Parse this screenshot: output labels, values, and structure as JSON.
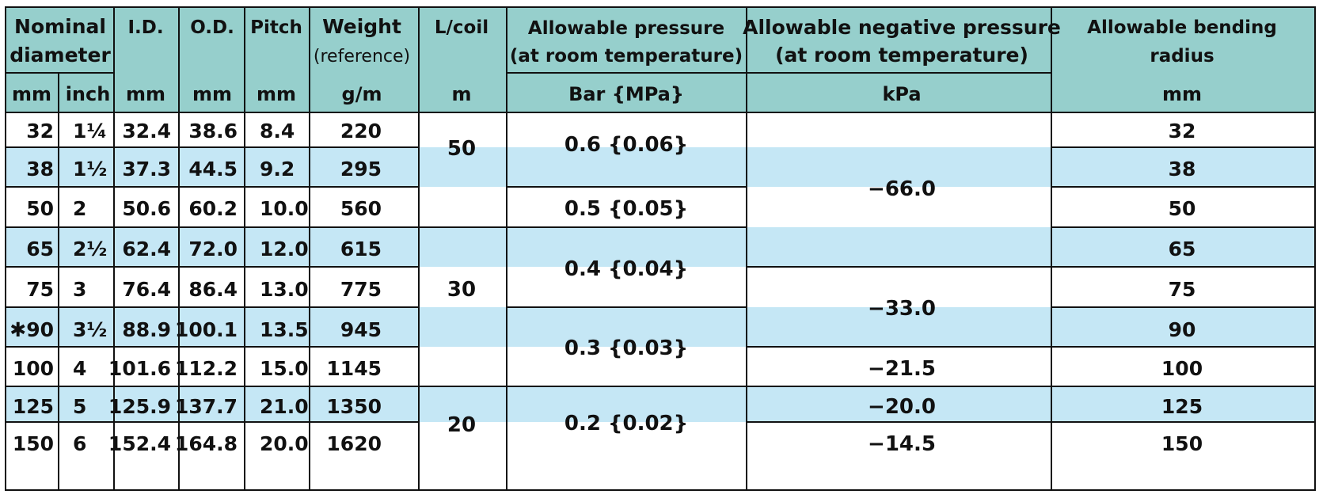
{
  "header": {
    "nominal_diameter": [
      "Nominal",
      "diameter"
    ],
    "id": "I.D.",
    "od": "O.D.",
    "pitch": "Pitch",
    "weight": "Weight",
    "weight_sub": "(reference)",
    "lcoil": "L/coil",
    "allowable_pressure": [
      "Allowable pressure",
      "(at room temperature)"
    ],
    "allowable_negative_pressure": [
      "Allowable negative pressure",
      "(at room temperature)"
    ],
    "allowable_bending_radius": [
      "Allowable bending",
      "radius"
    ]
  },
  "units": {
    "mm": "mm",
    "inch": "inch",
    "id": "mm",
    "od": "mm",
    "pitch": "mm",
    "weight": "g/m",
    "lcoil": "m",
    "pressure": "Bar {MPa}",
    "negative": "kPa",
    "radius": "mm"
  },
  "rows": [
    {
      "mm": "32",
      "inch": "1¼",
      "id": "32.4",
      "od": "38.6",
      "pitch": "8.4",
      "weight": "220",
      "radius": "32"
    },
    {
      "mm": "38",
      "inch": "1½",
      "id": "37.3",
      "od": "44.5",
      "pitch": "9.2",
      "weight": "295",
      "radius": "38"
    },
    {
      "mm": "50",
      "inch": "2",
      "id": "50.6",
      "od": "60.2",
      "pitch": "10.0",
      "weight": "560",
      "radius": "50"
    },
    {
      "mm": "65",
      "inch": "2½",
      "id": "62.4",
      "od": "72.0",
      "pitch": "12.0",
      "weight": "615",
      "radius": "65"
    },
    {
      "mm": "75",
      "inch": "3",
      "id": "76.4",
      "od": "86.4",
      "pitch": "13.0",
      "weight": "775",
      "radius": "75"
    },
    {
      "mm": "✱90",
      "inch": "3½",
      "id": "88.9",
      "od": "100.1",
      "pitch": "13.5",
      "weight": "945",
      "radius": "90"
    },
    {
      "mm": "100",
      "inch": "4",
      "id": "101.6",
      "od": "112.2",
      "pitch": "15.0",
      "weight": "1145",
      "radius": "100"
    },
    {
      "mm": "125",
      "inch": "5",
      "id": "125.9",
      "od": "137.7",
      "pitch": "21.0",
      "weight": "1350",
      "radius": "125"
    },
    {
      "mm": "150",
      "inch": "6",
      "id": "152.4",
      "od": "164.8",
      "pitch": "20.0",
      "weight": "1620",
      "radius": "150"
    }
  ],
  "lcoil_groups": [
    "50",
    "30",
    "20"
  ],
  "pressure_groups": [
    "0.6 {0.06}",
    "0.5 {0.05}",
    "0.4 {0.04}",
    "0.3 {0.03}",
    "0.2 {0.02}"
  ],
  "negative_groups": [
    "−66.0",
    "−33.0",
    "−21.5",
    "−20.0",
    "−14.5"
  ],
  "colors": {
    "header_bg": "#96cfcc",
    "band_bg": "#c5e7f5",
    "border": "#111111"
  }
}
